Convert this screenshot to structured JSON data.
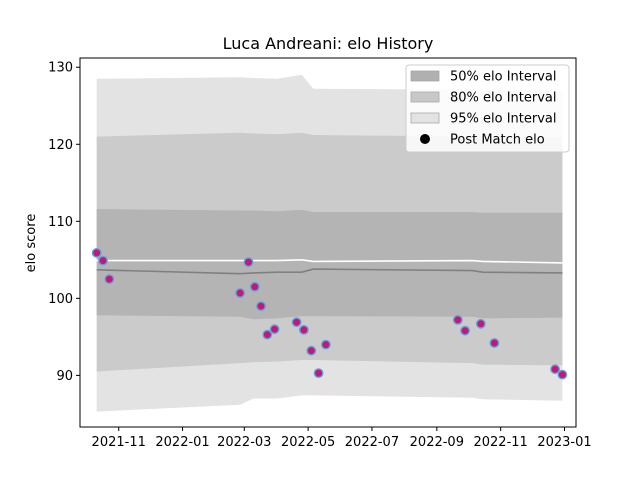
{
  "chart_data": {
    "type": "area",
    "title": "Luca Andreani: elo History",
    "xlabel": "",
    "ylabel": "elo score",
    "x_axis_type": "date",
    "xlim": [
      "2021-09-25",
      "2023-01-12"
    ],
    "ylim": [
      83.3,
      131.2
    ],
    "grid": false,
    "legend_placement": "top-right",
    "x_ticks": [
      "2021-11",
      "2022-01",
      "2022-03",
      "2022-05",
      "2022-07",
      "2022-09",
      "2022-11",
      "2023-01"
    ],
    "y_ticks": [
      90,
      100,
      110,
      120,
      130
    ],
    "legend": [
      {
        "label": "50% elo Interval",
        "kind": "band",
        "color": "#b0b0b0"
      },
      {
        "label": "80% elo Interval",
        "kind": "band",
        "color": "#c8c8c8"
      },
      {
        "label": "95% elo Interval",
        "kind": "band",
        "color": "#e3e3e3"
      },
      {
        "label": "Post Match elo",
        "kind": "marker",
        "color": "#000000"
      }
    ],
    "colors": {
      "band_50": "#b4b4b4",
      "band_80": "#cbcbcb",
      "band_95": "#e3e3e3",
      "mean_line": "#808080",
      "median_line": "#ffffff",
      "point_fill": "#c2187a",
      "point_edge": "#5fa3d8"
    },
    "bands": {
      "x": [
        "2021-10-11",
        "2022-02-25",
        "2022-03-10",
        "2022-04-01",
        "2022-04-25",
        "2022-05-06",
        "2022-10-05",
        "2022-10-15",
        "2022-12-30"
      ],
      "p95_low": [
        85.3,
        86.2,
        87.0,
        87.0,
        87.4,
        87.4,
        87.1,
        86.9,
        86.7
      ],
      "p95_high": [
        128.5,
        128.7,
        128.6,
        128.5,
        129.0,
        127.2,
        127.1,
        127.0,
        126.9
      ],
      "p80_low": [
        90.5,
        91.6,
        91.7,
        91.8,
        92.0,
        92.0,
        91.6,
        91.4,
        91.3
      ],
      "p80_high": [
        121.0,
        121.5,
        121.4,
        121.3,
        121.5,
        121.2,
        121.0,
        121.0,
        120.9
      ],
      "p50_low": [
        97.8,
        97.6,
        97.3,
        97.4,
        97.7,
        97.7,
        97.6,
        97.4,
        97.5
      ],
      "p50_high": [
        111.6,
        111.4,
        111.4,
        111.3,
        111.5,
        111.2,
        111.2,
        111.1,
        111.1
      ],
      "mean": [
        103.7,
        103.2,
        103.3,
        103.4,
        103.4,
        103.8,
        103.6,
        103.4,
        103.3
      ],
      "median": [
        104.9,
        104.9,
        104.9,
        104.9,
        105.0,
        104.8,
        104.9,
        104.8,
        104.6
      ]
    },
    "series": [
      {
        "kind": "scatter",
        "x": [
          "2021-10-11",
          "2021-10-17",
          "2021-10-23",
          "2022-02-25",
          "2022-03-05",
          "2022-03-11",
          "2022-03-17",
          "2022-03-23",
          "2022-03-30",
          "2022-04-20",
          "2022-04-27",
          "2022-05-04",
          "2022-05-11",
          "2022-05-18",
          "2022-09-21",
          "2022-09-28",
          "2022-10-13",
          "2022-10-26",
          "2022-12-23",
          "2022-12-30"
        ],
        "y": [
          105.9,
          104.9,
          102.5,
          100.7,
          104.7,
          101.5,
          99.0,
          95.3,
          96.0,
          96.9,
          95.9,
          93.2,
          90.3,
          94.0,
          97.2,
          95.8,
          96.7,
          94.2,
          90.8,
          90.1
        ]
      }
    ]
  }
}
